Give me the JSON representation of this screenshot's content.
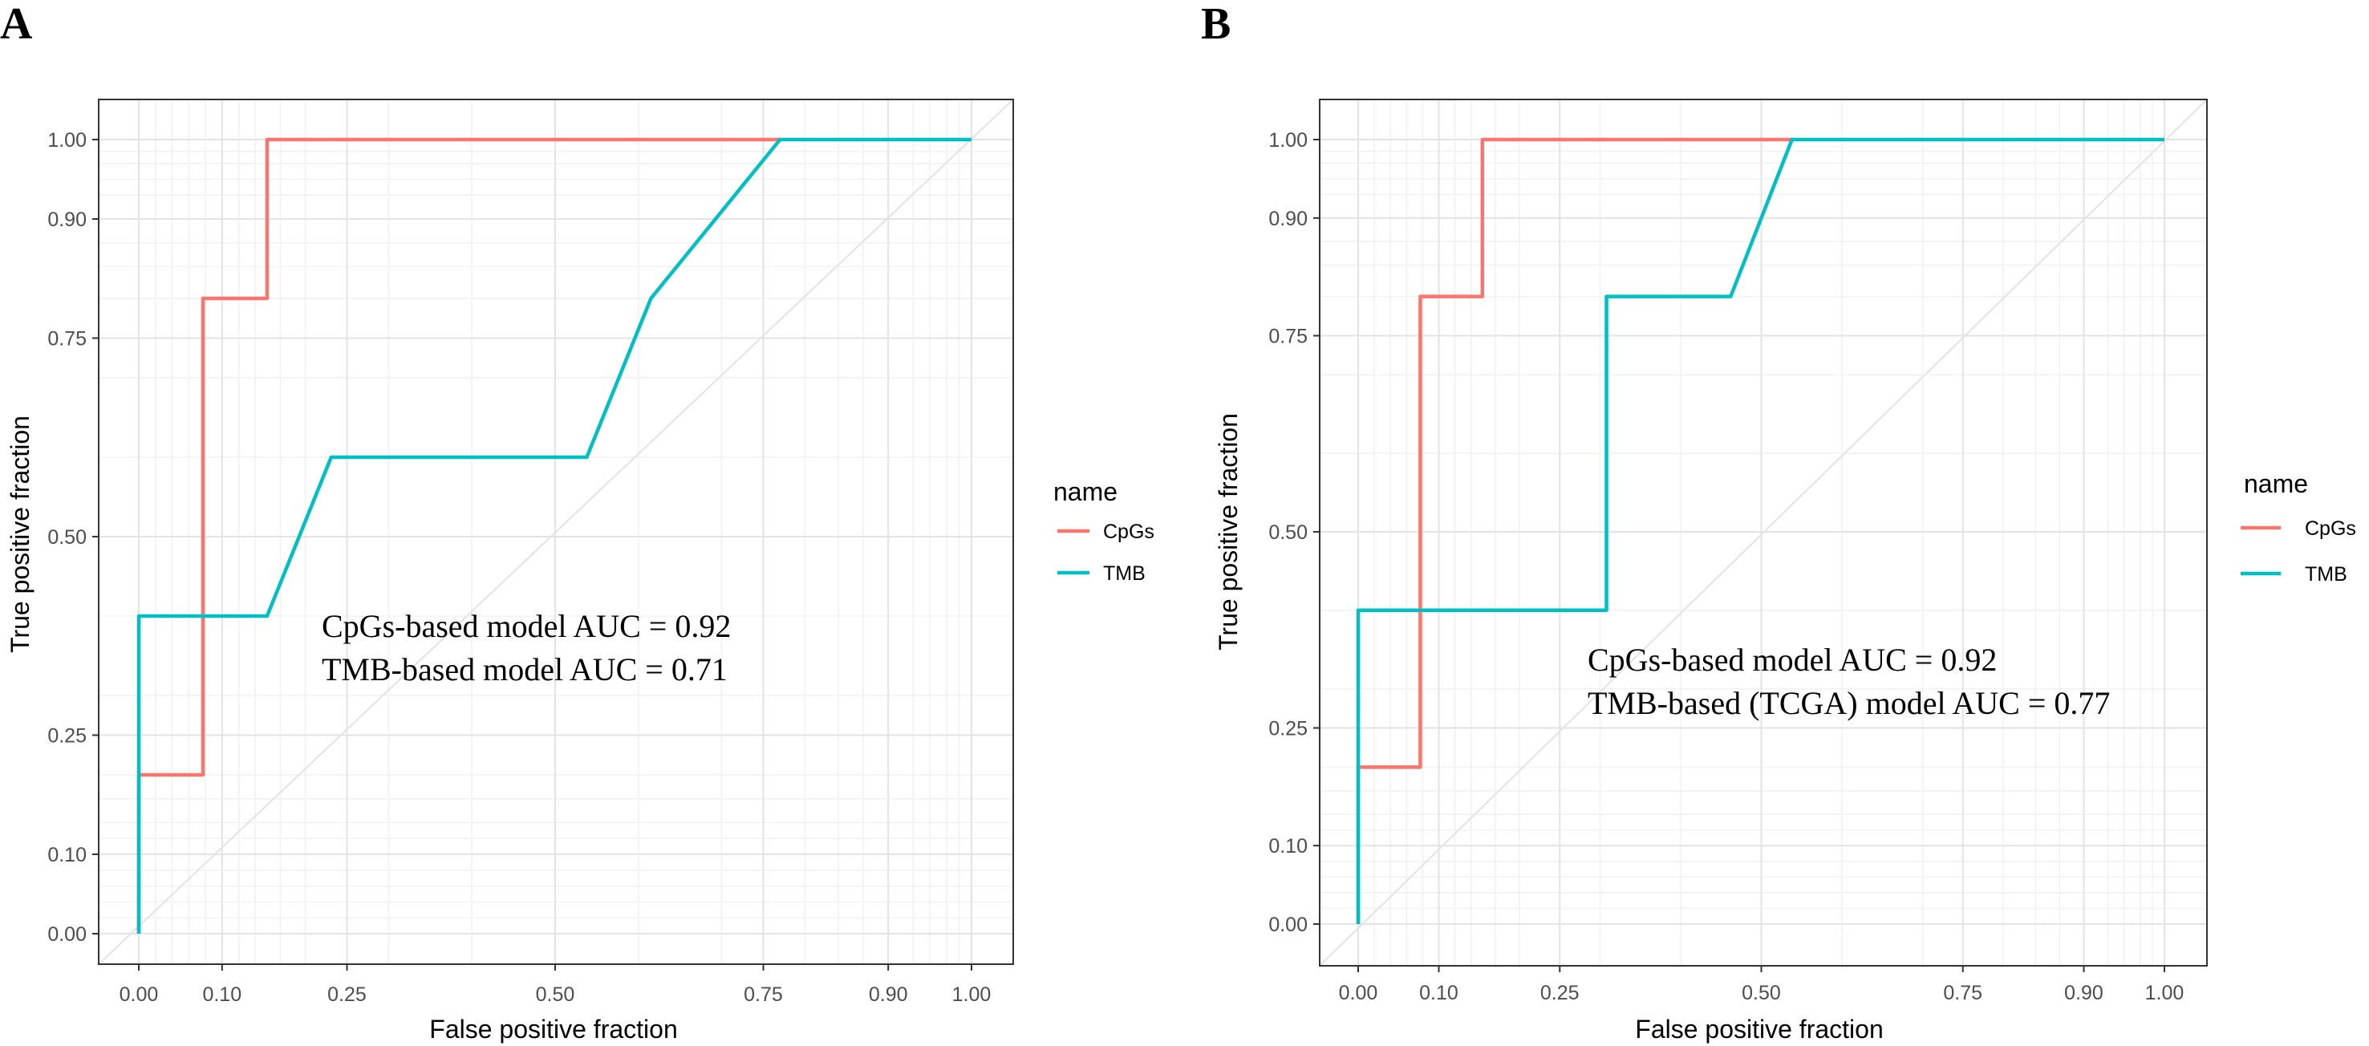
{
  "chart_data": [
    {
      "panel_label": "A",
      "type": "line",
      "title": "",
      "xlabel": "False positive fraction",
      "ylabel": "True positive fraction",
      "xlim": [
        0,
        1
      ],
      "ylim": [
        0,
        1
      ],
      "x_ticks": [
        0.0,
        0.1,
        0.25,
        0.5,
        0.75,
        0.9,
        1.0
      ],
      "x_tick_labels": [
        "0.00",
        "0.10",
        "0.25",
        "0.50",
        "0.75",
        "0.90",
        "1.00"
      ],
      "y_ticks": [
        0.0,
        0.1,
        0.25,
        0.5,
        0.75,
        0.9,
        1.0
      ],
      "y_tick_labels": [
        "0.00",
        "0.10",
        "0.25",
        "0.50",
        "0.75",
        "0.90",
        "1.00"
      ],
      "grid": true,
      "reference_diagonal": true,
      "legend": {
        "title": "name",
        "position": "right"
      },
      "series": [
        {
          "name": "CpGs",
          "color": "#F8766D",
          "x": [
            0,
            0,
            0.077,
            0.077,
            0.154,
            0.154,
            0.77
          ],
          "y": [
            0,
            0.2,
            0.2,
            0.8,
            0.8,
            1.0,
            1.0
          ]
        },
        {
          "name": "TMB",
          "color": "#00BFC4",
          "x": [
            0,
            0,
            0.154,
            0.231,
            0.538,
            0.615,
            0.77,
            1.0
          ],
          "y": [
            0,
            0.4,
            0.4,
            0.6,
            0.6,
            0.8,
            1.0,
            1.0
          ]
        }
      ],
      "annotations": [
        "CpGs-based model AUC = 0.92",
        "TMB-based model AUC = 0.71"
      ]
    },
    {
      "panel_label": "B",
      "type": "line",
      "title": "",
      "xlabel": "False positive fraction",
      "ylabel": "True positive fraction",
      "xlim": [
        0,
        1
      ],
      "ylim": [
        0,
        1
      ],
      "x_ticks": [
        0.0,
        0.1,
        0.25,
        0.5,
        0.75,
        0.9,
        1.0
      ],
      "x_tick_labels": [
        "0.00",
        "0.10",
        "0.25",
        "0.50",
        "0.75",
        "0.90",
        "1.00"
      ],
      "y_ticks": [
        0.0,
        0.1,
        0.25,
        0.5,
        0.75,
        0.9,
        1.0
      ],
      "y_tick_labels": [
        "0.00",
        "0.10",
        "0.25",
        "0.50",
        "0.75",
        "0.90",
        "1.00"
      ],
      "grid": true,
      "reference_diagonal": true,
      "legend": {
        "title": "name",
        "position": "right"
      },
      "series": [
        {
          "name": "CpGs",
          "color": "#F8766D",
          "x": [
            0,
            0,
            0.077,
            0.077,
            0.154,
            0.154,
            0.538
          ],
          "y": [
            0,
            0.2,
            0.2,
            0.8,
            0.8,
            1.0,
            1.0
          ]
        },
        {
          "name": "TMB",
          "color": "#00BFC4",
          "x": [
            0,
            0,
            0.308,
            0.308,
            0.462,
            0.538,
            1.0
          ],
          "y": [
            0,
            0.4,
            0.4,
            0.8,
            0.8,
            1.0,
            1.0
          ]
        }
      ],
      "annotations": [
        "CpGs-based model AUC = 0.92",
        "TMB-based (TCGA) model AUC = 0.77"
      ]
    }
  ]
}
